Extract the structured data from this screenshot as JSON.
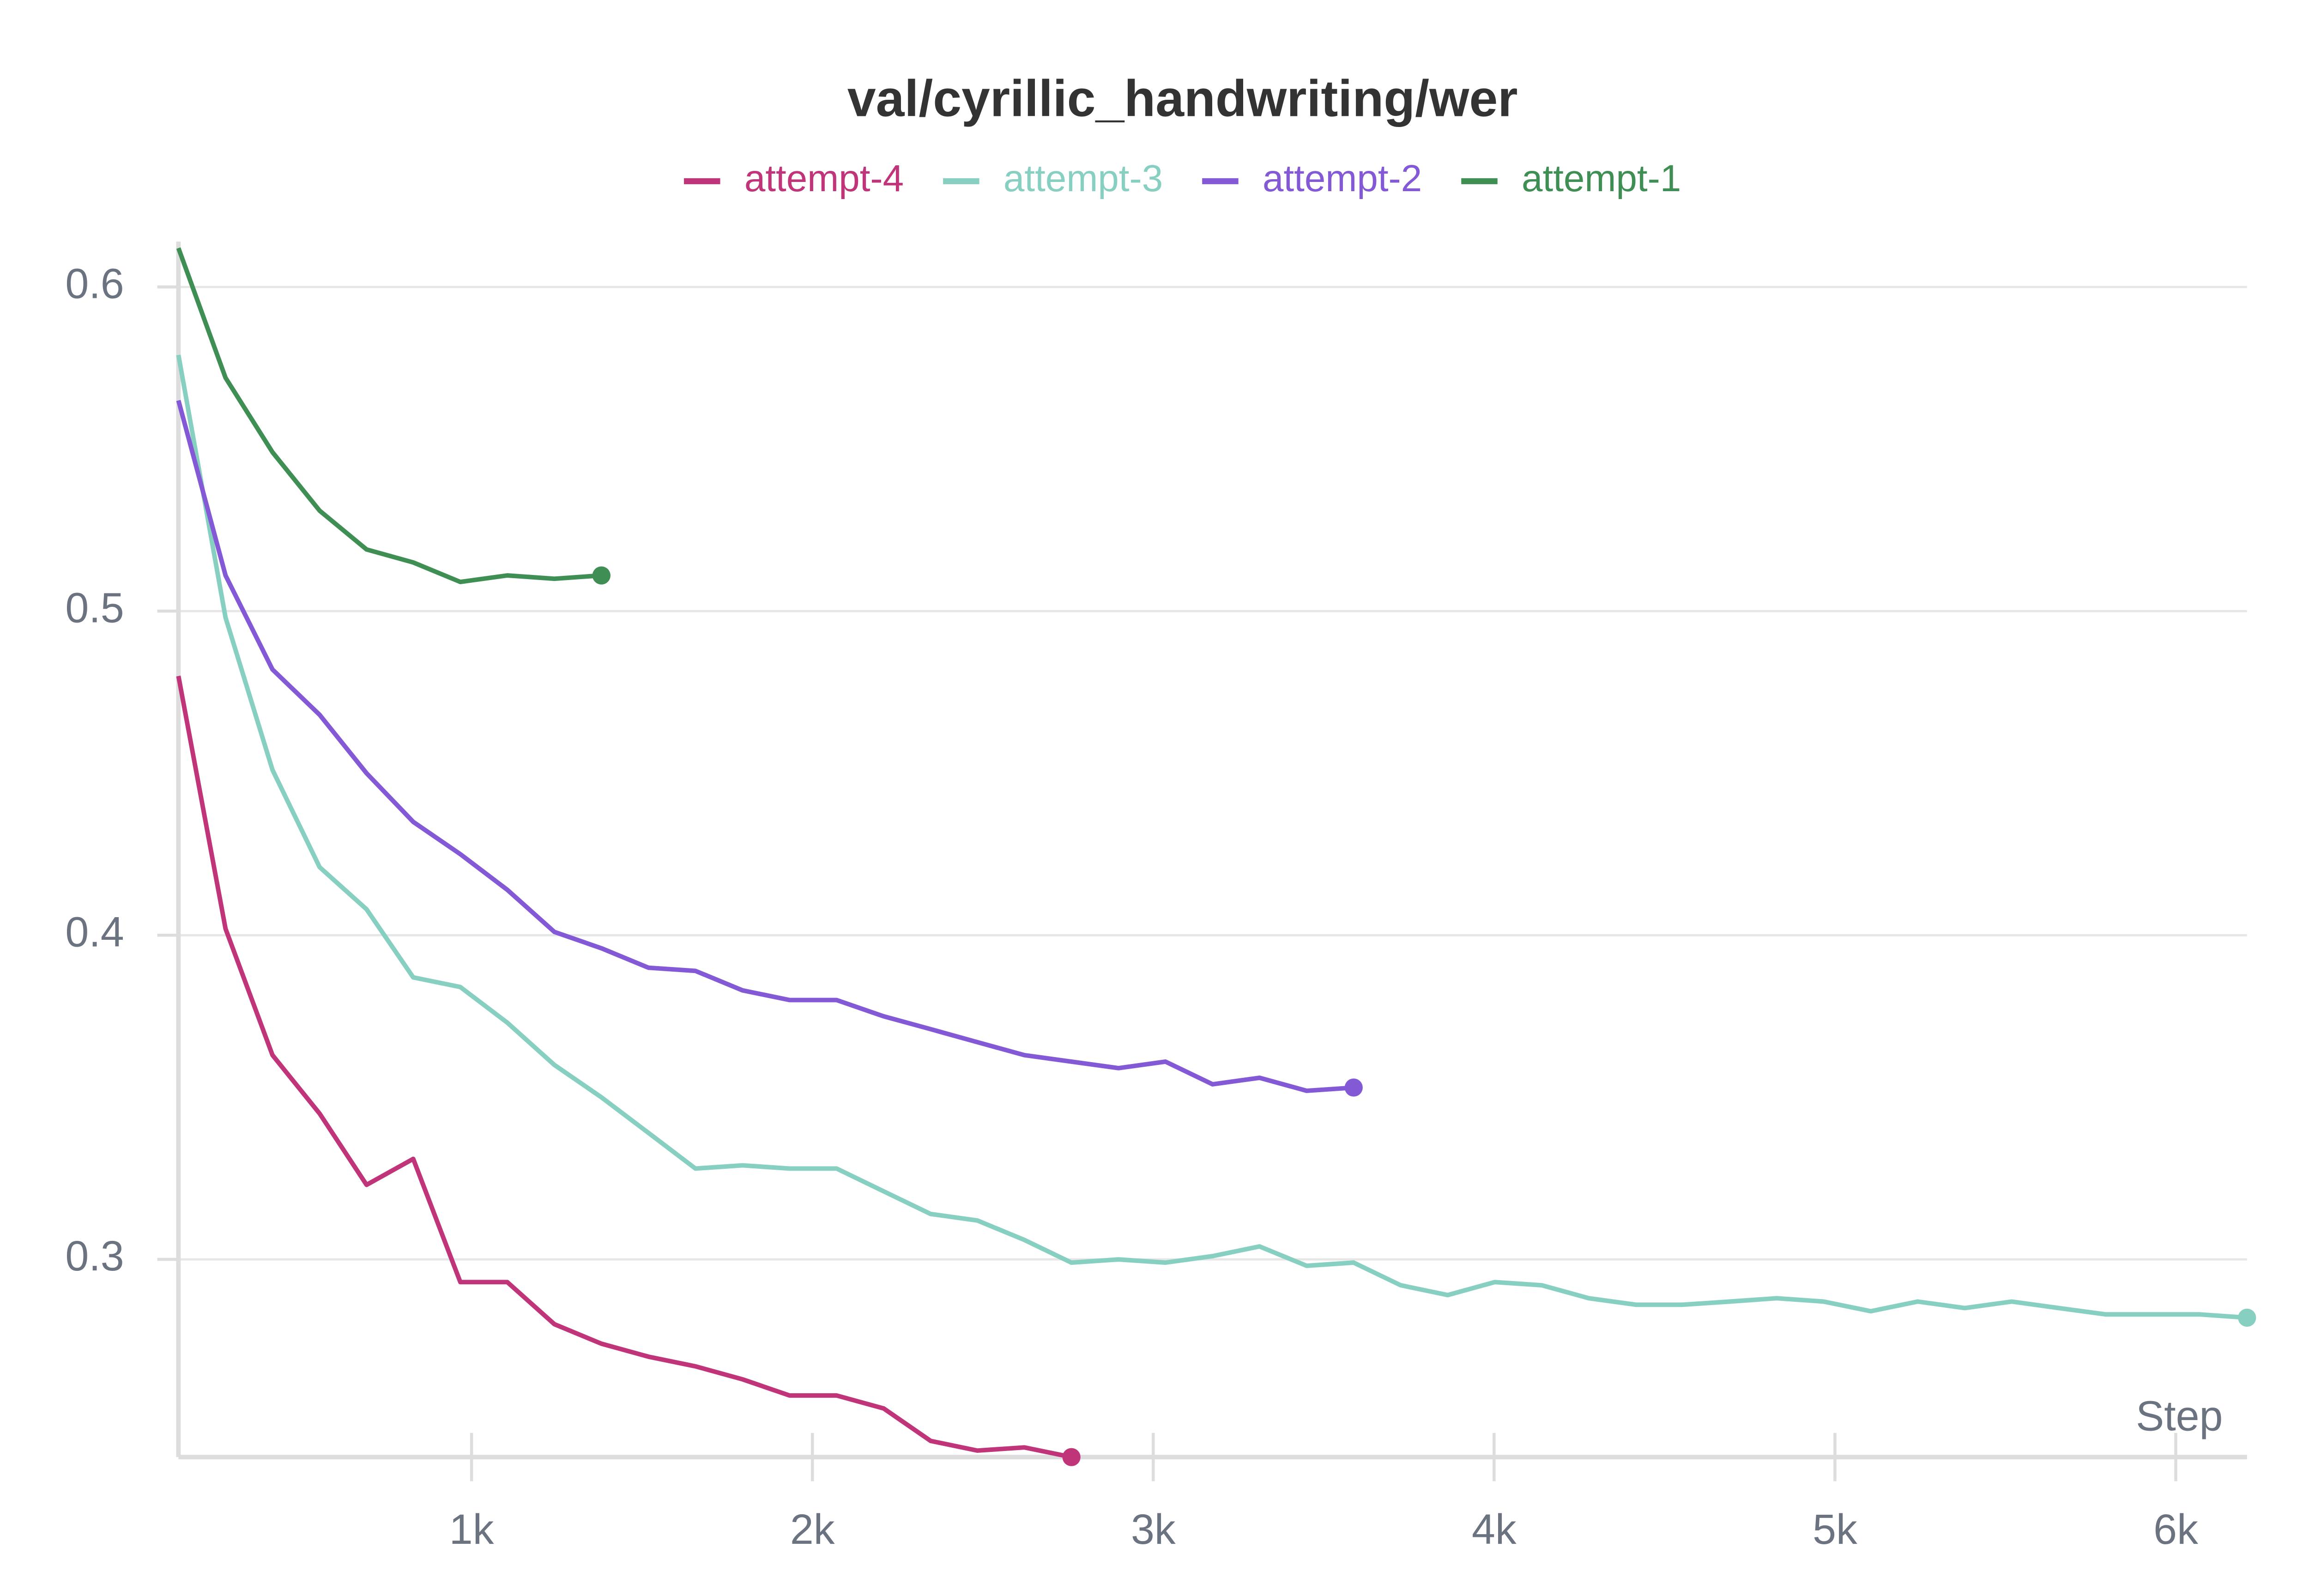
{
  "chart_data": {
    "type": "line",
    "title": "val/cyrillic_handwriting/wer",
    "x_label": "Step",
    "x": [
      140,
      278,
      416,
      554,
      692,
      829,
      967,
      1105,
      1243,
      1381,
      1519,
      1657,
      1795,
      1933,
      2071,
      2209,
      2347,
      2484,
      2622,
      2760,
      2898,
      3036,
      3174,
      3312,
      3450,
      3588,
      3726,
      3864,
      4002,
      4140,
      4278,
      4416,
      4553,
      4691,
      4829,
      4967,
      5105,
      5243,
      5381,
      5519,
      5657,
      5795,
      5933,
      6071,
      6209
    ],
    "series": [
      {
        "name": "attempt-4",
        "color": "#c0357a",
        "values": [
          0.48,
          0.402,
          0.363,
          0.345,
          0.323,
          0.331,
          0.293,
          0.293,
          0.28,
          0.274,
          0.27,
          0.267,
          0.263,
          0.258,
          0.258,
          0.254,
          0.244,
          0.241,
          0.242,
          0.239,
          null,
          null,
          null,
          null,
          null,
          null,
          null,
          null,
          null,
          null,
          null,
          null,
          null,
          null,
          null,
          null,
          null,
          null,
          null,
          null,
          null,
          null,
          null,
          null,
          null
        ]
      },
      {
        "name": "attempt-3",
        "color": "#87cfc0",
        "values": [
          0.579,
          0.498,
          0.451,
          0.421,
          0.408,
          0.387,
          0.384,
          0.373,
          0.36,
          0.35,
          0.339,
          0.328,
          0.329,
          0.328,
          0.328,
          0.321,
          0.314,
          0.312,
          0.306,
          0.299,
          0.3,
          0.299,
          0.301,
          0.304,
          0.298,
          0.299,
          0.292,
          0.289,
          0.293,
          0.292,
          0.288,
          0.286,
          0.286,
          0.287,
          0.288,
          0.287,
          0.284,
          0.287,
          0.285,
          0.287,
          0.285,
          0.283,
          0.283,
          0.283,
          0.282
        ]
      },
      {
        "name": "attempt-2",
        "color": "#8459d6",
        "values": [
          0.565,
          0.511,
          0.482,
          0.468,
          0.45,
          0.435,
          0.425,
          0.414,
          0.401,
          0.396,
          0.39,
          0.389,
          0.383,
          0.38,
          0.38,
          0.375,
          0.371,
          0.367,
          0.363,
          0.361,
          0.359,
          0.361,
          0.354,
          0.356,
          0.352,
          0.353,
          null,
          null,
          null,
          null,
          null,
          null,
          null,
          null,
          null,
          null,
          null,
          null,
          null,
          null,
          null,
          null,
          null,
          null,
          null
        ]
      },
      {
        "name": "attempt-1",
        "color": "#3f8f55",
        "values": [
          0.612,
          0.572,
          0.549,
          0.531,
          0.519,
          0.515,
          0.509,
          0.511,
          0.51,
          0.511,
          null,
          null,
          null,
          null,
          null,
          null,
          null,
          null,
          null,
          null,
          null,
          null,
          null,
          null,
          null,
          null,
          null,
          null,
          null,
          null,
          null,
          null,
          null,
          null,
          null,
          null,
          null,
          null,
          null,
          null,
          null,
          null,
          null,
          null,
          null
        ]
      }
    ],
    "xlim": [
      140,
      6209
    ],
    "ylim": [
      0.239,
      0.614
    ],
    "xticks": [
      {
        "value": 1000,
        "label": "1k"
      },
      {
        "value": 2000,
        "label": "2k"
      },
      {
        "value": 3000,
        "label": "3k"
      },
      {
        "value": 4000,
        "label": "4k"
      },
      {
        "value": 5000,
        "label": "5k"
      },
      {
        "value": 6000,
        "label": "6k"
      }
    ],
    "yticks": [
      0.3,
      0.4,
      0.5,
      0.6
    ],
    "grid": true
  }
}
